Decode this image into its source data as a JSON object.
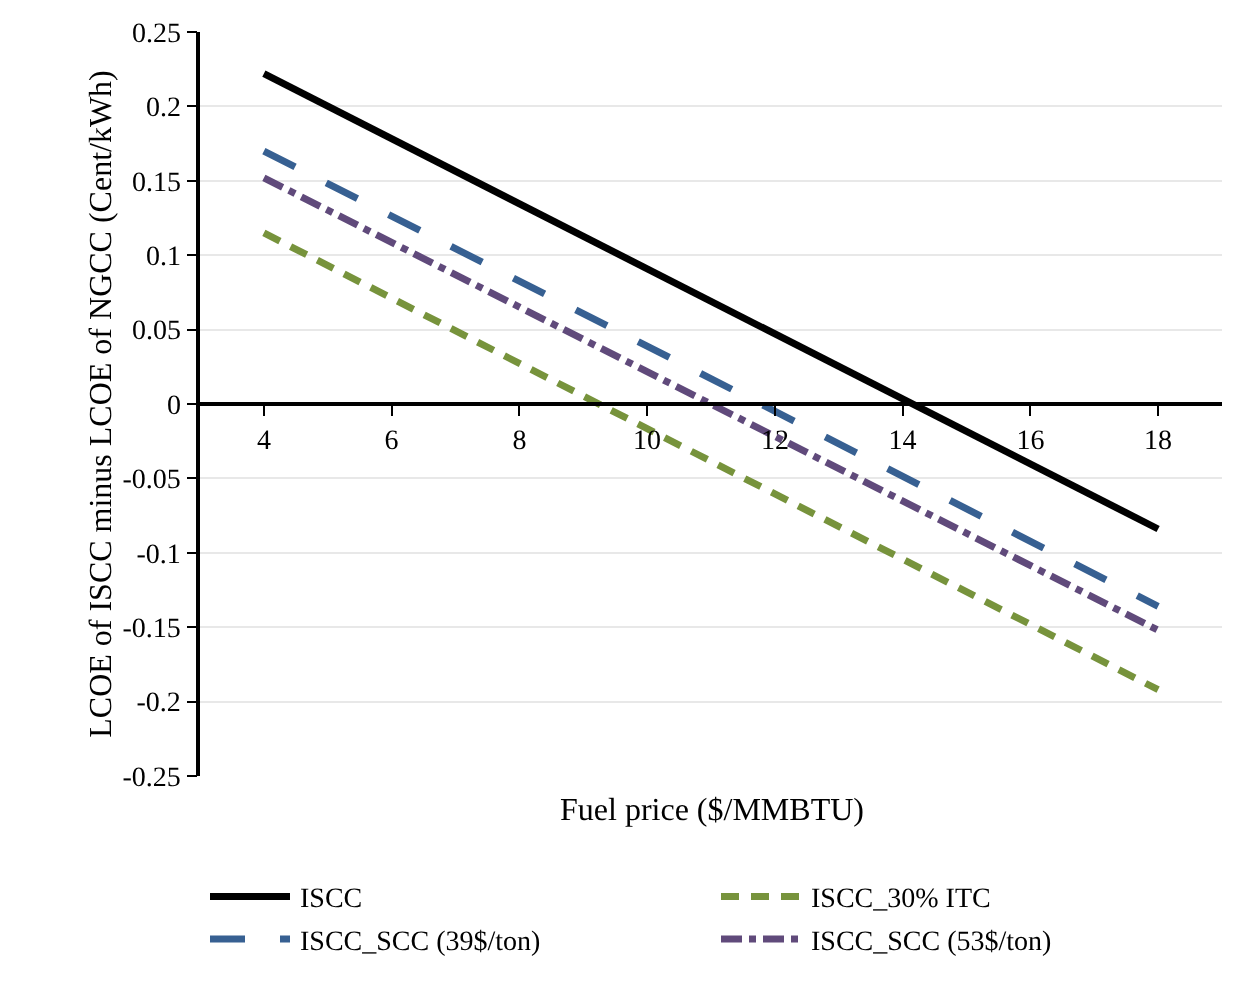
{
  "chart_data": {
    "type": "line",
    "xlabel": "Fuel price ($/MMBTU)",
    "ylabel": "LCOE of ISCC minus LCOE of NGCC (Cent/kWh)",
    "x": [
      4,
      18
    ],
    "series": [
      {
        "name": "ISCC",
        "color": "#000000",
        "line_style": "solid",
        "values": [
          0.222,
          -0.084
        ]
      },
      {
        "name": "ISCC_30% ITC",
        "color": "#77933c",
        "line_style": "dashed",
        "values": [
          0.115,
          -0.192
        ]
      },
      {
        "name": "ISCC_SCC (39$/ton)",
        "color": "#376092",
        "line_style": "dashed",
        "values": [
          0.17,
          -0.136
        ]
      },
      {
        "name": "ISCC_SCC (53$/ton)",
        "color": "#604a7b",
        "line_style": "dashed",
        "values": [
          0.152,
          -0.152
        ]
      }
    ],
    "xlim": [
      3,
      19
    ],
    "xticks": [
      4,
      6,
      8,
      10,
      12,
      14,
      16,
      18
    ],
    "ylim": [
      -0.25,
      0.25
    ],
    "yticks": [
      {
        "value": -0.25,
        "label": "-0.25"
      },
      {
        "value": -0.2,
        "label": "-0.2"
      },
      {
        "value": -0.15,
        "label": "-0.15"
      },
      {
        "value": -0.1,
        "label": "-0.1"
      },
      {
        "value": -0.05,
        "label": "-0.05"
      },
      {
        "value": 0,
        "label": "0"
      },
      {
        "value": 0.05,
        "label": "0.05"
      },
      {
        "value": 0.1,
        "label": "0.1"
      },
      {
        "value": 0.15,
        "label": "0.15"
      },
      {
        "value": 0.2,
        "label": "0.2"
      },
      {
        "value": 0.25,
        "label": "0.25"
      }
    ],
    "grid": "y",
    "legend": "bottom",
    "marker": "none"
  }
}
